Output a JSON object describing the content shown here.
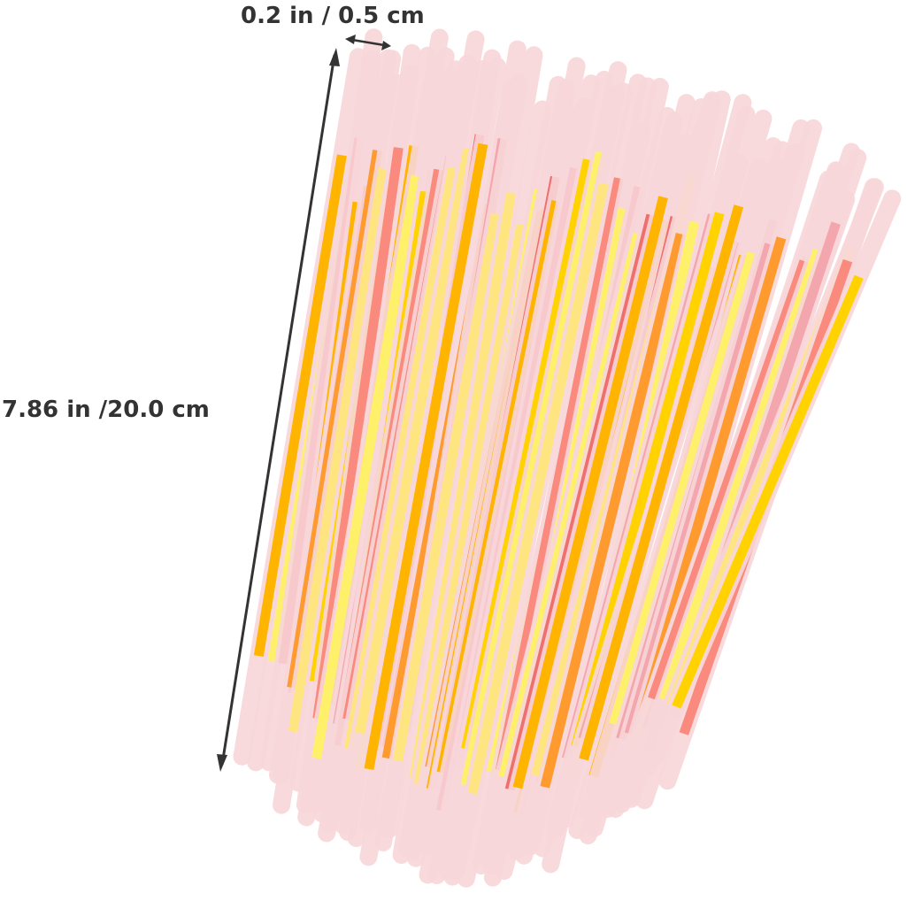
{
  "product_image": {
    "subject": "glow-sticks-bundle",
    "stick_colors": [
      "#f4a6ae",
      "#ef6f6f",
      "#ffd200",
      "#ffb400",
      "#ffe580",
      "#f7c9cd",
      "#ff9a2e",
      "#fff06a",
      "#f98a7d"
    ],
    "tube_color": "#f8d7da"
  },
  "dimensions": {
    "width_label": "0.2 in / 0.5 cm",
    "length_label": "7.86 in /20.0 cm",
    "arrow_color": "#333333"
  }
}
